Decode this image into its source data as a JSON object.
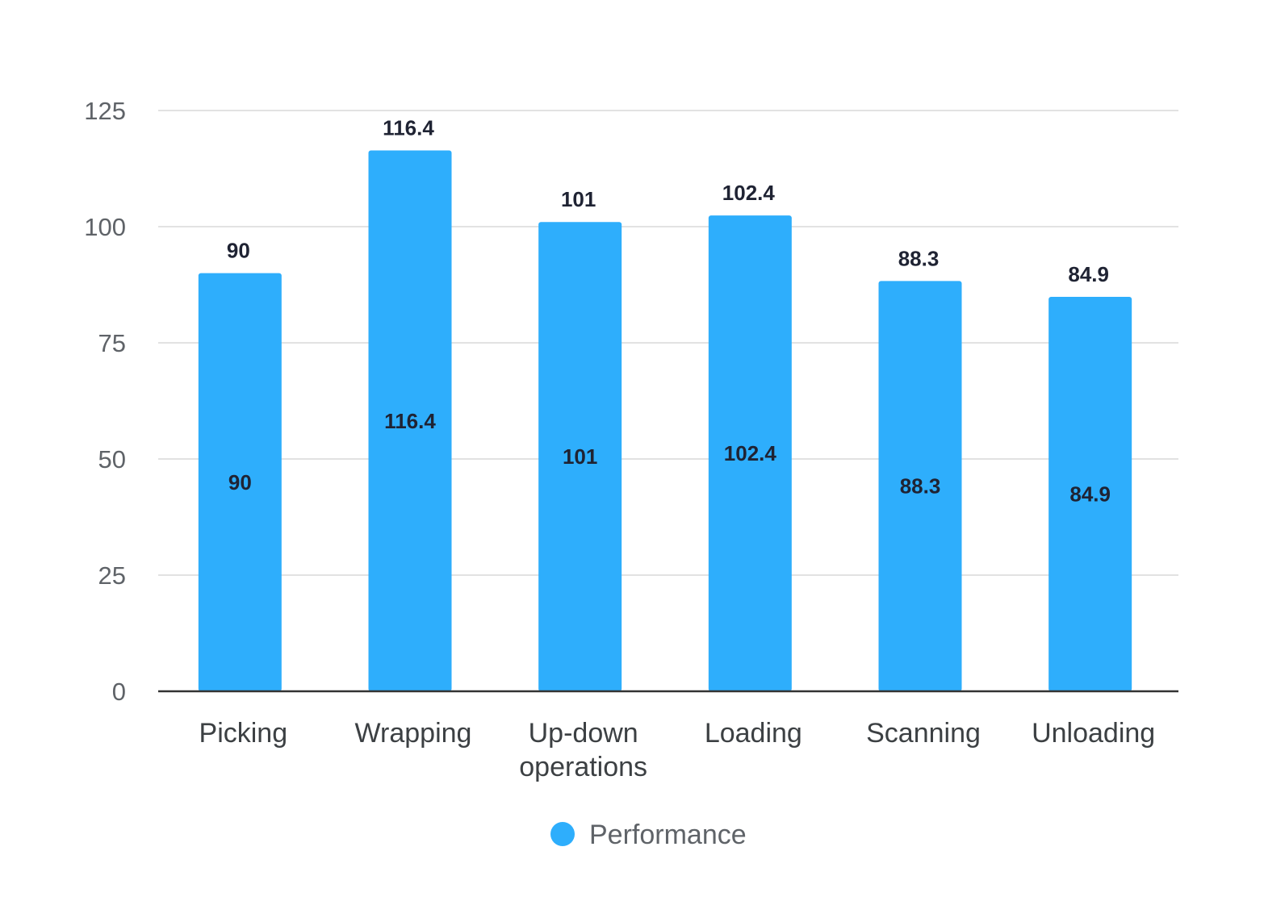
{
  "chart_data": {
    "type": "bar",
    "title": "",
    "xlabel": "",
    "ylabel": "",
    "categories": [
      "Picking",
      "Wrapping",
      "Up-down operations",
      "Loading",
      "Scanning",
      "Unloading"
    ],
    "category_label_lines": [
      [
        "Picking"
      ],
      [
        "Wrapping"
      ],
      [
        "Up-down",
        "operations"
      ],
      [
        "Loading"
      ],
      [
        "Scanning"
      ],
      [
        "Unloading"
      ]
    ],
    "series": [
      {
        "name": "Performance",
        "values": [
          90,
          116.4,
          101,
          102.4,
          88.3,
          84.9
        ],
        "color": "#2eaefc"
      }
    ],
    "value_labels": [
      "90",
      "116.4",
      "101",
      "102.4",
      "88.3",
      "84.9"
    ],
    "ylim": [
      0,
      125
    ],
    "yticks": [
      0,
      25,
      50,
      75,
      100,
      125
    ],
    "ytick_labels": [
      "0",
      "25",
      "50",
      "75",
      "100",
      "125"
    ],
    "grid": true,
    "legend_position": "bottom",
    "data_labels": "above-and-inside",
    "colors": {
      "grid": "#d9d9d9",
      "baseline": "#333333"
    }
  }
}
